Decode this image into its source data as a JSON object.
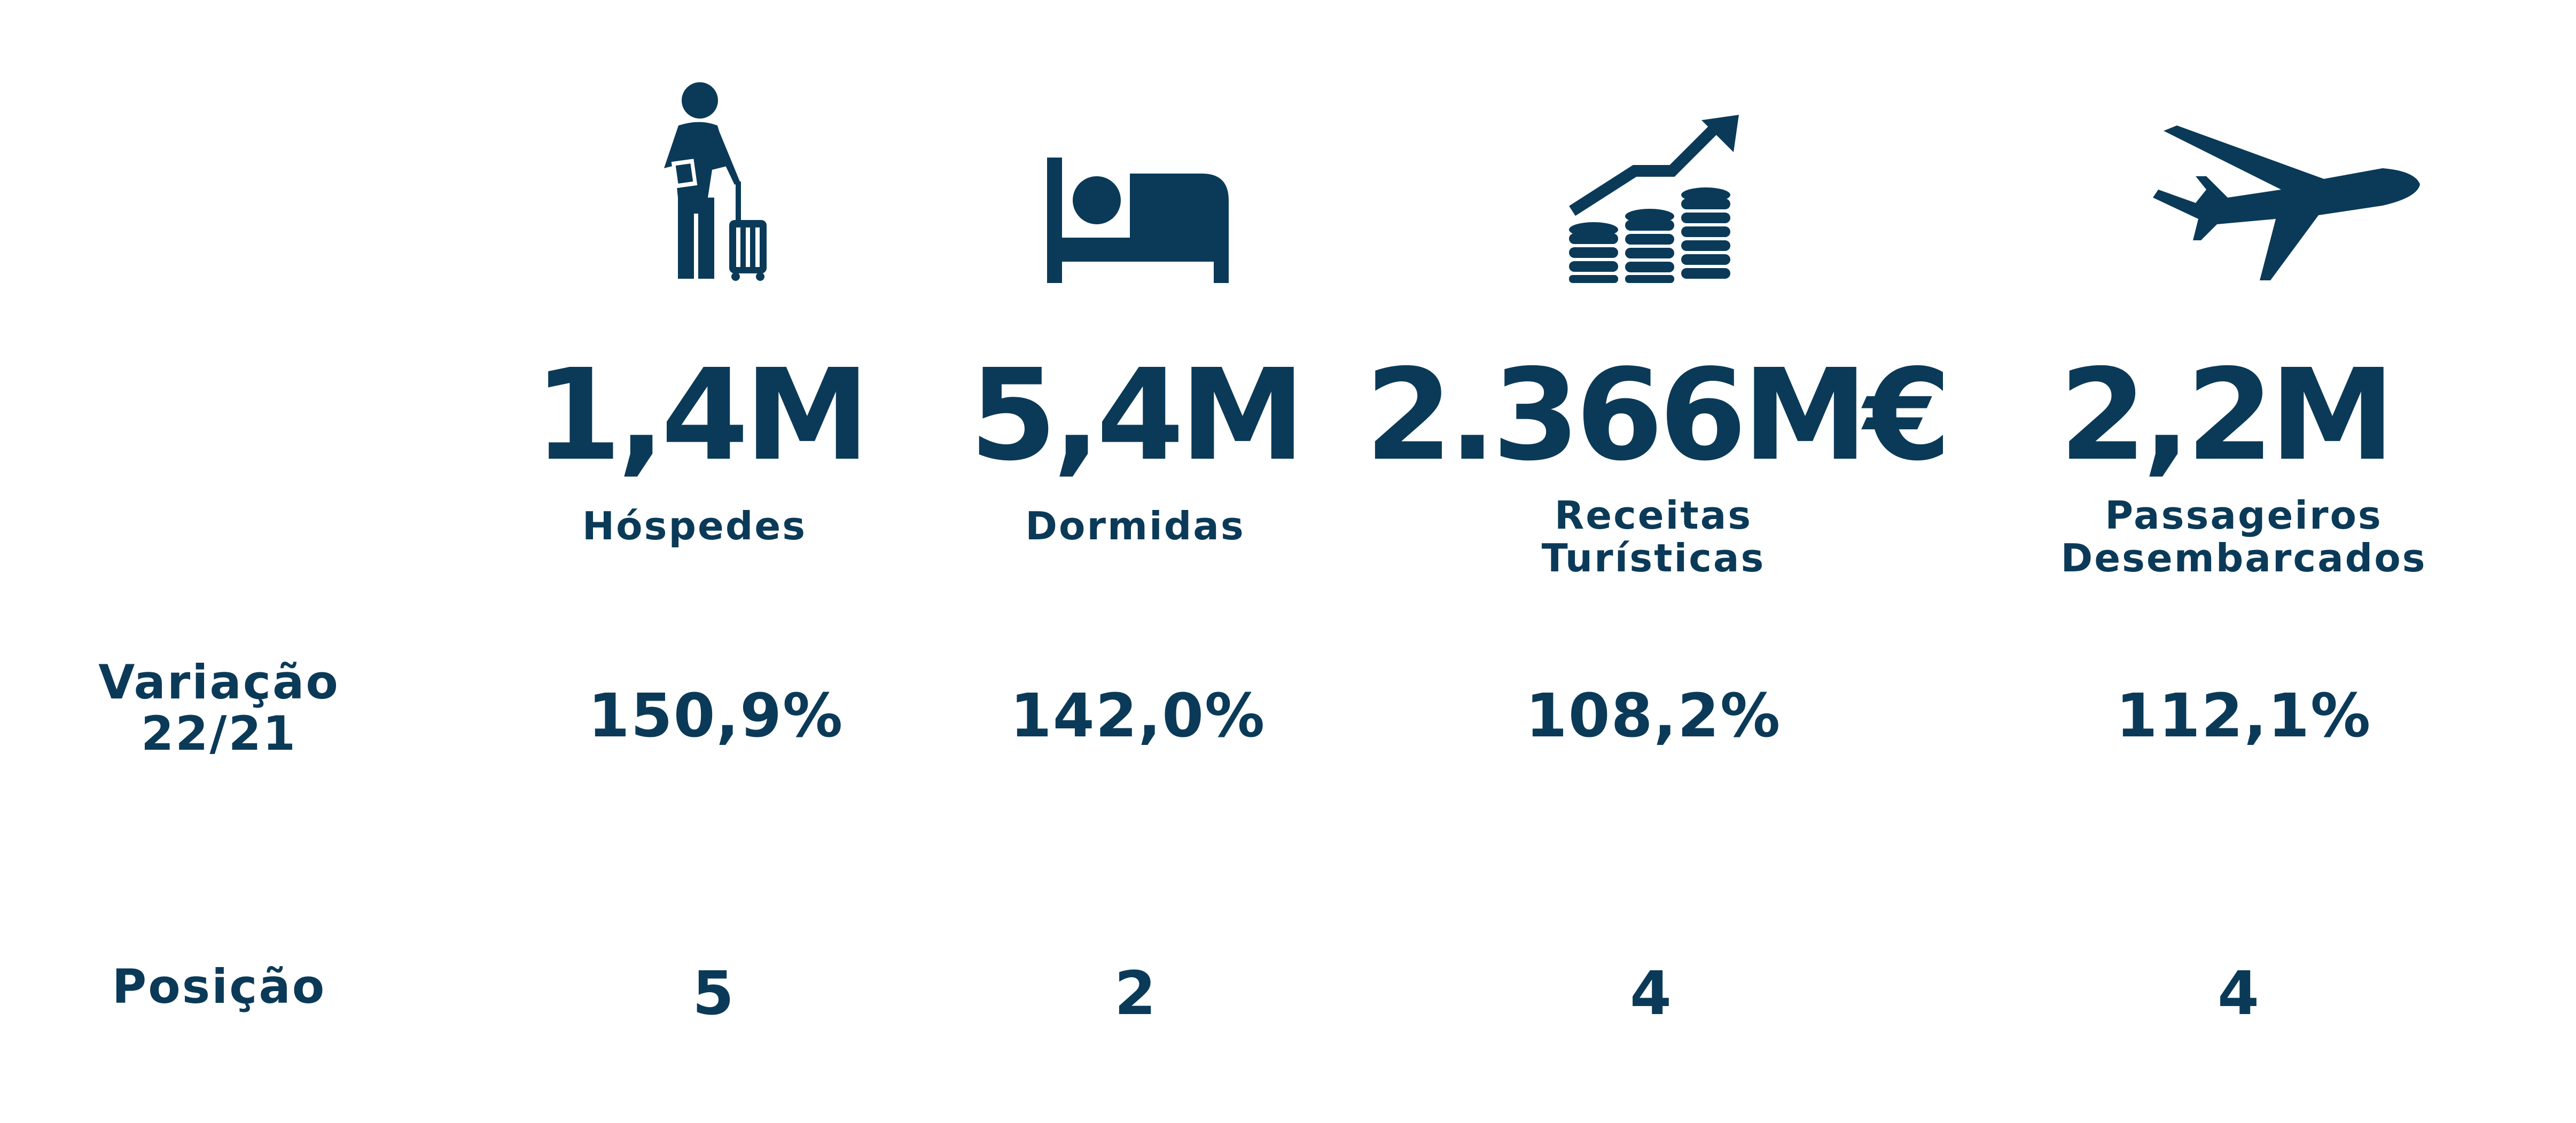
{
  "colors": {
    "primary": "#0b3a58"
  },
  "icons": [
    "traveler-luggage-icon",
    "bed-icon",
    "revenue-coins-icon",
    "airplane-icon"
  ],
  "metrics": [
    {
      "value": "1,4M",
      "label_lines": [
        "Hóspedes"
      ]
    },
    {
      "value": "5,4M",
      "label_lines": [
        "Dormidas"
      ]
    },
    {
      "value": "2.366M€",
      "label_lines": [
        "Receitas",
        "Turísticas"
      ]
    },
    {
      "value": "2,2M",
      "label_lines": [
        "Passageiros",
        "Desembarcados"
      ]
    }
  ],
  "variation": {
    "label_lines": [
      "Variação",
      "22/21"
    ],
    "values": [
      "150,9%",
      "142,0%",
      "108,2%",
      "112,1%"
    ]
  },
  "position": {
    "label": "Posição",
    "values": [
      "5",
      "2",
      "4",
      "4"
    ]
  }
}
